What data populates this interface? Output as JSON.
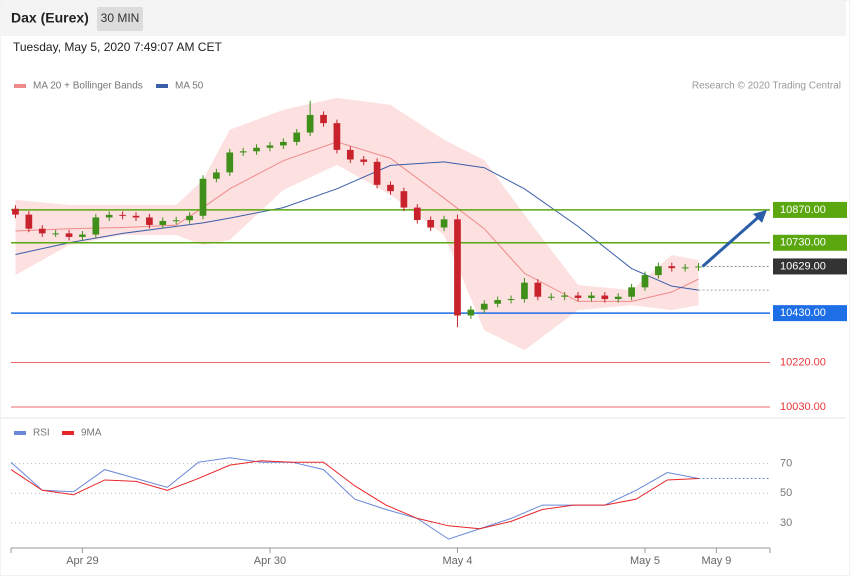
{
  "header": {
    "title": "Dax (Eurex)",
    "interval": "30 MIN",
    "timestamp": "Tuesday, May 5, 2020 7:49:07 AM CET"
  },
  "chart_data": [
    {
      "type": "candlestick",
      "credit": "Research © 2020 Trading Central",
      "up_color": "#3f8f1a",
      "down_color": "#c8232c",
      "xlim": [
        -16,
        154
      ],
      "ylim": [
        10000,
        11360
      ],
      "x": [
        -15,
        -12,
        -9,
        -6,
        -3,
        0,
        3,
        6,
        9,
        12,
        15,
        18,
        21,
        24,
        27,
        30,
        33,
        36,
        39,
        42,
        45,
        48,
        51,
        54,
        57,
        60,
        63,
        66,
        69,
        72,
        75,
        78,
        81,
        84,
        87,
        90,
        93,
        96,
        99,
        102,
        105,
        108,
        111,
        114,
        117,
        120,
        123,
        126,
        129,
        132,
        135,
        138
      ],
      "open": [
        10875,
        10850,
        10790,
        10770,
        10770,
        10755,
        10765,
        10838,
        10849,
        10845,
        10838,
        10806,
        10823,
        10826,
        10845,
        11003,
        11030,
        11115,
        11120,
        11135,
        11145,
        11160,
        11200,
        11275,
        11240,
        11126,
        11085,
        11075,
        10977,
        10950,
        10880,
        10827,
        10795,
        10830,
        10420,
        10445,
        10470,
        10486,
        10490,
        10560,
        10500,
        10500,
        10505,
        10495,
        10505,
        10490,
        10500,
        10540,
        10592,
        10630,
        10622,
        10625
      ],
      "high": [
        10890,
        10865,
        10805,
        10785,
        10785,
        10780,
        10853,
        10864,
        10864,
        10860,
        10853,
        10838,
        10841,
        10860,
        11018,
        11045,
        11130,
        11135,
        11150,
        11160,
        11175,
        11215,
        11335,
        11290,
        11255,
        11141,
        11100,
        11090,
        10992,
        10965,
        10895,
        10842,
        10845,
        10850,
        10460,
        10485,
        10501,
        10505,
        10580,
        10575,
        10515,
        10520,
        10520,
        10520,
        10520,
        10515,
        10555,
        10607,
        10645,
        10645,
        10640,
        10644
      ],
      "low": [
        10835,
        10775,
        10755,
        10755,
        10740,
        10740,
        10750,
        10823,
        10830,
        10823,
        10791,
        10791,
        10808,
        10811,
        10830,
        10988,
        11015,
        11100,
        11105,
        11120,
        11130,
        11145,
        11185,
        11225,
        11111,
        11070,
        11060,
        10962,
        10935,
        10865,
        10812,
        10780,
        10780,
        10370,
        10405,
        10430,
        10455,
        10471,
        10475,
        10485,
        10485,
        10485,
        10480,
        10480,
        10475,
        10475,
        10485,
        10525,
        10577,
        10607,
        10607,
        10610
      ],
      "close": [
        10850,
        10790,
        10770,
        10770,
        10755,
        10765,
        10838,
        10849,
        10845,
        10838,
        10806,
        10823,
        10826,
        10845,
        11003,
        11030,
        11115,
        11120,
        11135,
        11145,
        11160,
        11200,
        11275,
        11240,
        11126,
        11085,
        11075,
        10977,
        10950,
        10880,
        10827,
        10795,
        10830,
        10420,
        10445,
        10470,
        10486,
        10490,
        10560,
        10500,
        10500,
        10505,
        10495,
        10505,
        10490,
        10500,
        10540,
        10592,
        10630,
        10622,
        10625,
        10629
      ],
      "indicators": [
        {
          "name": "MA 20 + Bollinger Bands",
          "color": "#f08a8a",
          "band_color": "#fde0e0",
          "x": [
            -15,
            -3,
            9,
            21,
            27,
            33,
            45,
            57,
            69,
            81,
            90,
            99,
            111,
            123,
            132,
            138
          ],
          "values": [
            10780,
            10790,
            10795,
            10805,
            10880,
            10960,
            11080,
            11160,
            11090,
            10920,
            10790,
            10600,
            10480,
            10480,
            10520,
            10575
          ],
          "upper": [
            10913,
            10891,
            10891,
            10891,
            10998,
            11212,
            11297,
            11348,
            11318,
            11169,
            11083,
            10849,
            10550,
            10528,
            10678,
            10656
          ],
          "lower": [
            10592,
            10720,
            10763,
            10763,
            10720,
            10742,
            10955,
            11062,
            10934,
            10763,
            10357,
            10272,
            10443,
            10464,
            10443,
            10464
          ]
        },
        {
          "name": "MA 50",
          "color": "#3a5fa8",
          "x": [
            -15,
            -3,
            9,
            21,
            27,
            33,
            45,
            57,
            69,
            81,
            90,
            99,
            111,
            123,
            132,
            138
          ],
          "values": [
            10680,
            10730,
            10770,
            10800,
            10815,
            10835,
            10880,
            10960,
            11060,
            11075,
            11050,
            10960,
            10800,
            10620,
            10545,
            10528
          ]
        }
      ],
      "levels": [
        {
          "value": 10870,
          "label": "10870.00",
          "color": "#5aa70f",
          "boxed": true
        },
        {
          "value": 10730,
          "label": "10730.00",
          "color": "#5aa70f",
          "boxed": true
        },
        {
          "value": 10430,
          "label": "10430.00",
          "color": "#1e6ee6",
          "boxed": true
        },
        {
          "value": 10220,
          "label": "10220.00",
          "color": "#e8363a",
          "boxed": false
        },
        {
          "value": 10030,
          "label": "10030.00",
          "color": "#e8363a",
          "boxed": false
        }
      ],
      "current": {
        "value": 10629,
        "label": "10629.00",
        "color": "#333333"
      },
      "arrow_color": "#2b5ea8"
    },
    {
      "type": "line",
      "xlim": [
        -16,
        154
      ],
      "ylim": [
        13,
        86
      ],
      "yticks": [
        30,
        50,
        70
      ],
      "xticks": [
        {
          "value": 0,
          "label": "Apr 29"
        },
        {
          "value": 42,
          "label": "Apr 30"
        },
        {
          "value": 84,
          "label": "May 4"
        },
        {
          "value": 126,
          "label": "May 5"
        },
        {
          "value": 142,
          "label": "May 9"
        }
      ],
      "x": [
        -16,
        -9,
        -2,
        5,
        12,
        19,
        26,
        33,
        40,
        47,
        54,
        61,
        68,
        75,
        82,
        89,
        96,
        103,
        110,
        117,
        124,
        131,
        138
      ],
      "series": [
        {
          "name": "RSI",
          "color": "#6a87d8",
          "values": [
            71,
            52,
            51,
            66,
            60,
            54,
            71,
            74,
            71,
            71,
            66,
            46,
            39,
            33,
            19,
            26,
            33,
            42,
            42,
            42,
            52,
            64,
            60
          ]
        },
        {
          "name": "9MA",
          "color": "#e8262a",
          "values": [
            66,
            52,
            49,
            59,
            58,
            52,
            60,
            69,
            72,
            71,
            71,
            55,
            42,
            33,
            28,
            26,
            31,
            39,
            42,
            42,
            46,
            59,
            60
          ]
        }
      ]
    }
  ]
}
